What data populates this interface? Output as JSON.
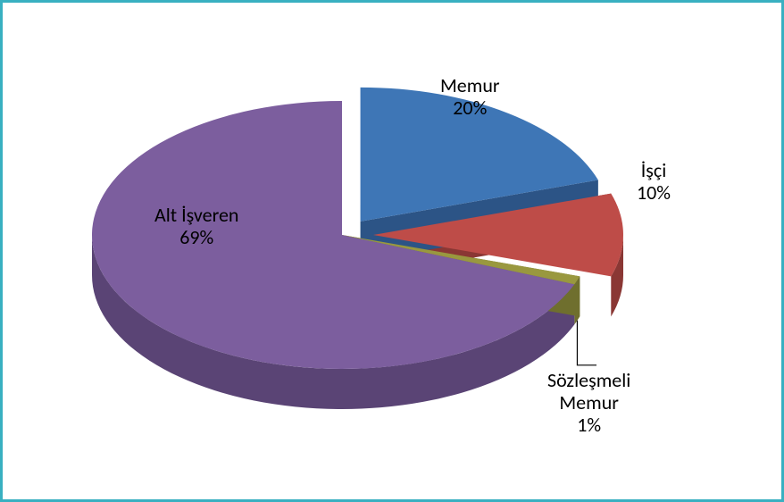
{
  "chart": {
    "type": "pie",
    "style": "3d-exploded",
    "border_color": "#39b0c1",
    "background_color": "#ffffff",
    "label_color": "#000000",
    "label_fontsize": 22,
    "leader_color": "#000000",
    "slices": [
      {
        "key": "memur",
        "label": "Memur",
        "percent": "20%",
        "value": 20,
        "top_color": "#3e76b6",
        "side_color": "#2c5486",
        "exploded": true
      },
      {
        "key": "isci",
        "label": "İşçi",
        "percent": "10%",
        "value": 10,
        "top_color": "#be4c48",
        "side_color": "#8a3734",
        "exploded": true
      },
      {
        "key": "sozlesmeli",
        "label": "Sözleşmeli Memur",
        "percent": "1%",
        "value": 1,
        "top_color": "#99983f",
        "side_color": "#6f6f2e",
        "exploded": false
      },
      {
        "key": "altisveren",
        "label": "Alt İşveren",
        "percent": "69%",
        "value": 69,
        "top_color": "#7c5e9e",
        "side_color": "#5a4475",
        "exploded": false
      }
    ]
  }
}
